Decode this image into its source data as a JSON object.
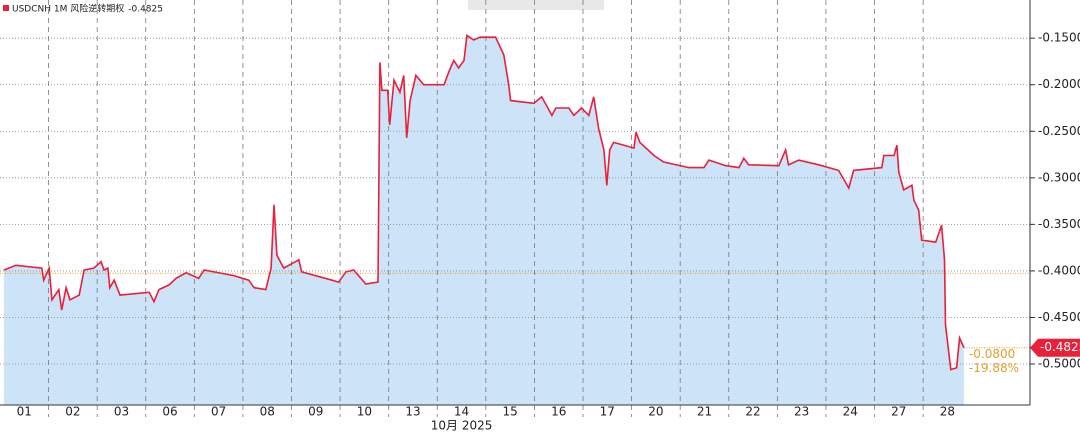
{
  "chart_data": {
    "type": "area",
    "series_name": "USDCNH 1M 风险逆转期权",
    "last_label": "-0.4825",
    "color": "#e8203a",
    "fill": "#cce3f8",
    "x_axis_label": "10月 2025",
    "change_label": "-0.0800",
    "change_pct_label": "-19.88%",
    "reference_value": -0.4025,
    "xlim": [
      0,
      21.2
    ],
    "ylim": [
      -0.544,
      -0.109
    ],
    "xticks": [
      {
        "value": 0.5,
        "label": "01"
      },
      {
        "value": 1.5,
        "label": "02"
      },
      {
        "value": 2.5,
        "label": "03"
      },
      {
        "value": 3.5,
        "label": "06"
      },
      {
        "value": 4.5,
        "label": "07"
      },
      {
        "value": 5.5,
        "label": "08"
      },
      {
        "value": 6.5,
        "label": "09"
      },
      {
        "value": 7.5,
        "label": "10"
      },
      {
        "value": 8.5,
        "label": "13"
      },
      {
        "value": 9.5,
        "label": "14"
      },
      {
        "value": 10.5,
        "label": "15"
      },
      {
        "value": 11.5,
        "label": "16"
      },
      {
        "value": 12.5,
        "label": "17"
      },
      {
        "value": 13.5,
        "label": "20"
      },
      {
        "value": 14.5,
        "label": "21"
      },
      {
        "value": 15.5,
        "label": "22"
      },
      {
        "value": 16.5,
        "label": "23"
      },
      {
        "value": 17.5,
        "label": "24"
      },
      {
        "value": 18.5,
        "label": "27"
      },
      {
        "value": 19.5,
        "label": "28"
      }
    ],
    "yticks": [
      {
        "value": -0.15,
        "label": "-0.1500"
      },
      {
        "value": -0.2,
        "label": "-0.2000"
      },
      {
        "value": -0.25,
        "label": "-0.2500"
      },
      {
        "value": -0.3,
        "label": "-0.3000"
      },
      {
        "value": -0.35,
        "label": "-0.3500"
      },
      {
        "value": -0.4,
        "label": "-0.4000"
      },
      {
        "value": -0.45,
        "label": "-0.4500"
      },
      {
        "value": -0.5,
        "label": "-0.5000"
      }
    ],
    "x": [
      0.08,
      0.33,
      0.86,
      0.9,
      1.01,
      1.07,
      1.21,
      1.27,
      1.36,
      1.44,
      1.63,
      1.73,
      1.93,
      2.08,
      2.14,
      2.22,
      2.26,
      2.35,
      2.47,
      3.07,
      3.17,
      3.27,
      3.48,
      3.62,
      3.83,
      4.09,
      4.2,
      4.81,
      5.12,
      5.23,
      5.47,
      5.58,
      5.64,
      5.7,
      5.84,
      6.15,
      6.21,
      6.77,
      6.97,
      7.12,
      7.28,
      7.53,
      7.78,
      7.82,
      7.86,
      7.98,
      8.02,
      8.11,
      8.23,
      8.31,
      8.37,
      8.44,
      8.56,
      8.72,
      9.14,
      9.24,
      9.34,
      9.44,
      9.55,
      9.61,
      9.75,
      9.88,
      10.2,
      10.37,
      10.47,
      10.51,
      10.99,
      11.15,
      11.36,
      11.44,
      11.71,
      11.81,
      11.97,
      12.12,
      12.22,
      12.32,
      12.43,
      12.49,
      12.55,
      12.63,
      13.05,
      13.09,
      13.17,
      13.46,
      13.66,
      14.18,
      14.49,
      14.59,
      14.94,
      15.21,
      15.31,
      15.41,
      16.03,
      16.17,
      16.23,
      16.44,
      16.85,
      17.26,
      17.47,
      17.57,
      18.15,
      18.19,
      18.4,
      18.46,
      18.5,
      18.6,
      18.77,
      18.81,
      18.91,
      18.97,
      19.26,
      19.38,
      19.44,
      19.46,
      19.57,
      19.69,
      19.75,
      19.84
    ],
    "values": [
      -0.399,
      -0.394,
      -0.397,
      -0.41,
      -0.397,
      -0.431,
      -0.42,
      -0.442,
      -0.418,
      -0.431,
      -0.426,
      -0.399,
      -0.397,
      -0.39,
      -0.399,
      -0.397,
      -0.418,
      -0.41,
      -0.426,
      -0.423,
      -0.433,
      -0.42,
      -0.415,
      -0.408,
      -0.402,
      -0.408,
      -0.399,
      -0.405,
      -0.41,
      -0.418,
      -0.42,
      -0.397,
      -0.329,
      -0.383,
      -0.397,
      -0.388,
      -0.401,
      -0.409,
      -0.412,
      -0.401,
      -0.399,
      -0.414,
      -0.412,
      -0.176,
      -0.206,
      -0.206,
      -0.243,
      -0.195,
      -0.208,
      -0.19,
      -0.257,
      -0.217,
      -0.19,
      -0.2,
      -0.2,
      -0.186,
      -0.174,
      -0.182,
      -0.174,
      -0.147,
      -0.152,
      -0.149,
      -0.149,
      -0.168,
      -0.2,
      -0.217,
      -0.22,
      -0.213,
      -0.233,
      -0.225,
      -0.225,
      -0.233,
      -0.225,
      -0.233,
      -0.213,
      -0.247,
      -0.27,
      -0.308,
      -0.27,
      -0.262,
      -0.268,
      -0.251,
      -0.262,
      -0.276,
      -0.283,
      -0.289,
      -0.289,
      -0.281,
      -0.287,
      -0.289,
      -0.279,
      -0.286,
      -0.287,
      -0.27,
      -0.286,
      -0.281,
      -0.286,
      -0.292,
      -0.311,
      -0.292,
      -0.289,
      -0.276,
      -0.276,
      -0.265,
      -0.294,
      -0.313,
      -0.308,
      -0.324,
      -0.335,
      -0.367,
      -0.369,
      -0.351,
      -0.388,
      -0.458,
      -0.506,
      -0.504,
      -0.472,
      -0.4825
    ]
  }
}
